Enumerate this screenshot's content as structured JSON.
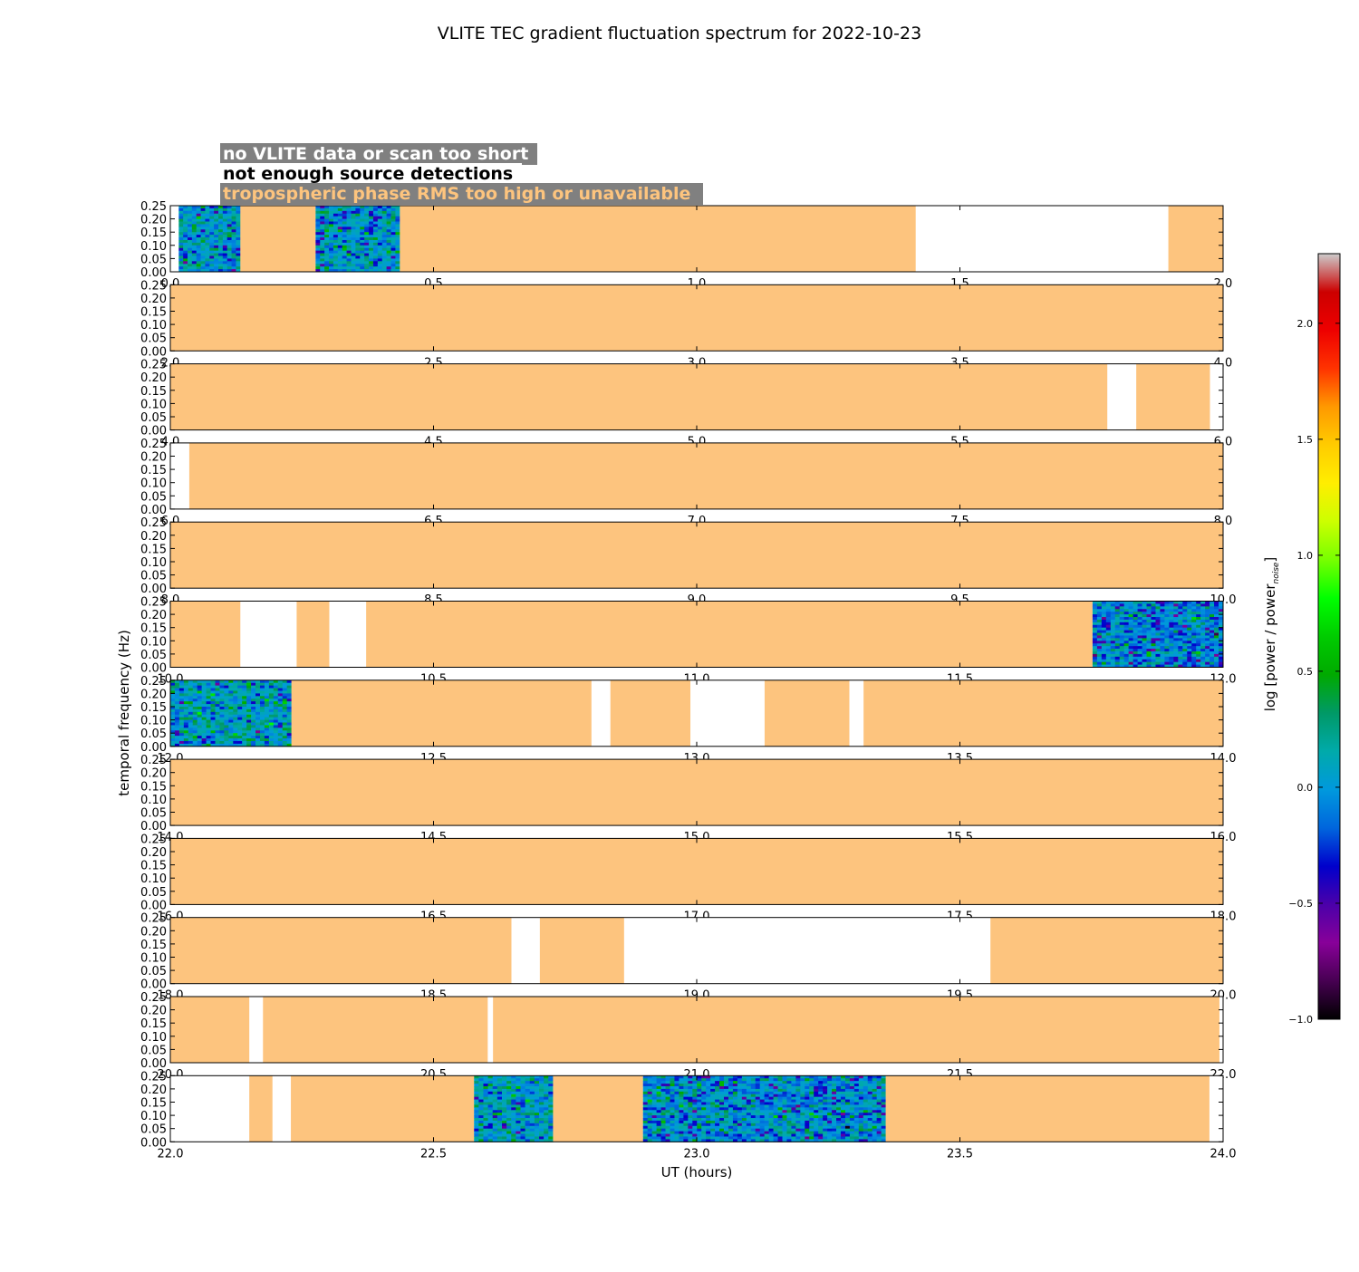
{
  "chart_data": {
    "type": "heatmap",
    "title": "VLITE TEC gradient fluctuation spectrum for 2022-10-23",
    "xlabel": "UT (hours)",
    "ylabel": "temporal frequency (Hz)",
    "ylim": [
      0,
      0.25
    ],
    "yticks": [
      "0.00",
      "0.05",
      "0.10",
      "0.15",
      "0.20",
      "0.25"
    ],
    "legend": [
      {
        "label": "no VLITE data or scan too short",
        "color": "#ffffff"
      },
      {
        "label": "not enough source detections",
        "color": "#000000"
      },
      {
        "label": "tropospheric phase RMS too high or unavailable",
        "color": "#fdc47e"
      }
    ],
    "colors": {
      "flag_background": "#808080",
      "tropo_fill": "#fdc47e",
      "no_data": "#ffffff"
    },
    "colorbar": {
      "label": "log [power / power",
      "label_sub": "noise",
      "label_end": "]",
      "range": [
        -1.0,
        2.3
      ],
      "ticks": [
        "-1.0",
        "-0.5",
        "0.0",
        "0.5",
        "1.0",
        "1.5",
        "2.0"
      ],
      "colormap": "nipy_spectral"
    },
    "panels": [
      {
        "xlim": [
          0,
          2
        ],
        "xticks": [
          "0.0",
          "0.5",
          "1.0",
          "1.5",
          "2.0"
        ],
        "segments": [
          {
            "start": 0.0,
            "end": 0.016,
            "status": "no_data"
          },
          {
            "start": 0.016,
            "end": 0.133,
            "status": "spectrum",
            "seed": 11,
            "level": 0.05
          },
          {
            "start": 0.133,
            "end": 0.276,
            "status": "tropo"
          },
          {
            "start": 0.276,
            "end": 0.436,
            "status": "spectrum",
            "seed": 23,
            "level": 0.02
          },
          {
            "start": 0.436,
            "end": 1.416,
            "status": "tropo"
          },
          {
            "start": 1.416,
            "end": 1.896,
            "status": "no_data"
          },
          {
            "start": 1.896,
            "end": 2.0,
            "status": "tropo"
          }
        ]
      },
      {
        "xlim": [
          2,
          4
        ],
        "xticks": [
          "2.0",
          "2.5",
          "3.0",
          "3.5",
          "4.0"
        ],
        "segments": [
          {
            "start": 2.0,
            "end": 4.0,
            "status": "tropo"
          }
        ]
      },
      {
        "xlim": [
          4,
          6
        ],
        "xticks": [
          "4.0",
          "4.5",
          "5.0",
          "5.5",
          "6.0"
        ],
        "segments": [
          {
            "start": 4.0,
            "end": 5.78,
            "status": "tropo"
          },
          {
            "start": 5.78,
            "end": 5.835,
            "status": "no_data"
          },
          {
            "start": 5.835,
            "end": 5.975,
            "status": "tropo"
          },
          {
            "start": 5.975,
            "end": 6.0,
            "status": "no_data"
          }
        ]
      },
      {
        "xlim": [
          6,
          8
        ],
        "xticks": [
          "6.0",
          "6.5",
          "7.0",
          "7.5",
          "8.0"
        ],
        "segments": [
          {
            "start": 6.0,
            "end": 6.036,
            "status": "no_data"
          },
          {
            "start": 6.036,
            "end": 8.0,
            "status": "tropo"
          }
        ]
      },
      {
        "xlim": [
          8,
          10
        ],
        "xticks": [
          "8.0",
          "8.5",
          "9.0",
          "9.5",
          "10.0"
        ],
        "segments": [
          {
            "start": 8.0,
            "end": 10.0,
            "status": "tropo"
          }
        ]
      },
      {
        "xlim": [
          10,
          12
        ],
        "xticks": [
          "10.0",
          "10.5",
          "11.0",
          "11.5",
          "12.0"
        ],
        "segments": [
          {
            "start": 10.0,
            "end": 10.133,
            "status": "tropo"
          },
          {
            "start": 10.133,
            "end": 10.24,
            "status": "no_data"
          },
          {
            "start": 10.24,
            "end": 10.302,
            "status": "tropo"
          },
          {
            "start": 10.302,
            "end": 10.372,
            "status": "no_data"
          },
          {
            "start": 10.372,
            "end": 11.752,
            "status": "tropo"
          },
          {
            "start": 11.752,
            "end": 12.0,
            "status": "spectrum",
            "seed": 37,
            "level": -0.05
          }
        ]
      },
      {
        "xlim": [
          12,
          14
        ],
        "xticks": [
          "12.0",
          "12.5",
          "13.0",
          "13.5",
          "14.0"
        ],
        "segments": [
          {
            "start": 12.0,
            "end": 12.23,
            "status": "spectrum",
            "seed": 41,
            "level": 0.08
          },
          {
            "start": 12.23,
            "end": 12.8,
            "status": "tropo"
          },
          {
            "start": 12.8,
            "end": 12.836,
            "status": "no_data"
          },
          {
            "start": 12.836,
            "end": 12.988,
            "status": "tropo"
          },
          {
            "start": 12.988,
            "end": 13.129,
            "status": "no_data"
          },
          {
            "start": 13.129,
            "end": 13.29,
            "status": "tropo"
          },
          {
            "start": 13.29,
            "end": 13.317,
            "status": "no_data"
          },
          {
            "start": 13.317,
            "end": 14.0,
            "status": "tropo"
          }
        ]
      },
      {
        "xlim": [
          14,
          16
        ],
        "xticks": [
          "14.0",
          "14.5",
          "15.0",
          "15.5",
          "16.0"
        ],
        "segments": [
          {
            "start": 14.0,
            "end": 16.0,
            "status": "tropo"
          }
        ]
      },
      {
        "xlim": [
          16,
          18
        ],
        "xticks": [
          "16.0",
          "16.5",
          "17.0",
          "17.5",
          "18.0"
        ],
        "segments": [
          {
            "start": 16.0,
            "end": 18.0,
            "status": "tropo"
          }
        ]
      },
      {
        "xlim": [
          18,
          20
        ],
        "xticks": [
          "18.0",
          "18.5",
          "19.0",
          "19.5",
          "20.0"
        ],
        "segments": [
          {
            "start": 18.0,
            "end": 18.648,
            "status": "tropo"
          },
          {
            "start": 18.648,
            "end": 18.702,
            "status": "no_data"
          },
          {
            "start": 18.702,
            "end": 18.862,
            "status": "tropo"
          },
          {
            "start": 18.862,
            "end": 19.558,
            "status": "no_data"
          },
          {
            "start": 19.558,
            "end": 20.0,
            "status": "tropo"
          }
        ]
      },
      {
        "xlim": [
          20,
          22
        ],
        "xticks": [
          "20.0",
          "20.5",
          "21.0",
          "21.5",
          "22.0"
        ],
        "segments": [
          {
            "start": 20.0,
            "end": 20.15,
            "status": "tropo"
          },
          {
            "start": 20.15,
            "end": 20.176,
            "status": "no_data"
          },
          {
            "start": 20.176,
            "end": 20.603,
            "status": "tropo"
          },
          {
            "start": 20.603,
            "end": 20.613,
            "status": "no_data"
          },
          {
            "start": 20.613,
            "end": 21.993,
            "status": "tropo"
          },
          {
            "start": 21.993,
            "end": 22.0,
            "status": "no_data"
          }
        ]
      },
      {
        "xlim": [
          22,
          24
        ],
        "xticks": [
          "22.0",
          "22.5",
          "23.0",
          "23.5",
          "24.0"
        ],
        "segments": [
          {
            "start": 22.0,
            "end": 22.15,
            "status": "no_data"
          },
          {
            "start": 22.15,
            "end": 22.194,
            "status": "tropo"
          },
          {
            "start": 22.194,
            "end": 22.229,
            "status": "no_data"
          },
          {
            "start": 22.229,
            "end": 22.577,
            "status": "tropo"
          },
          {
            "start": 22.577,
            "end": 22.727,
            "status": "spectrum",
            "seed": 53,
            "level": 0.1
          },
          {
            "start": 22.727,
            "end": 22.898,
            "status": "tropo"
          },
          {
            "start": 22.898,
            "end": 23.359,
            "status": "spectrum",
            "seed": 67,
            "level": 0.0
          },
          {
            "start": 23.359,
            "end": 23.974,
            "status": "tropo"
          },
          {
            "start": 23.974,
            "end": 24.0,
            "status": "no_data"
          }
        ]
      }
    ]
  }
}
